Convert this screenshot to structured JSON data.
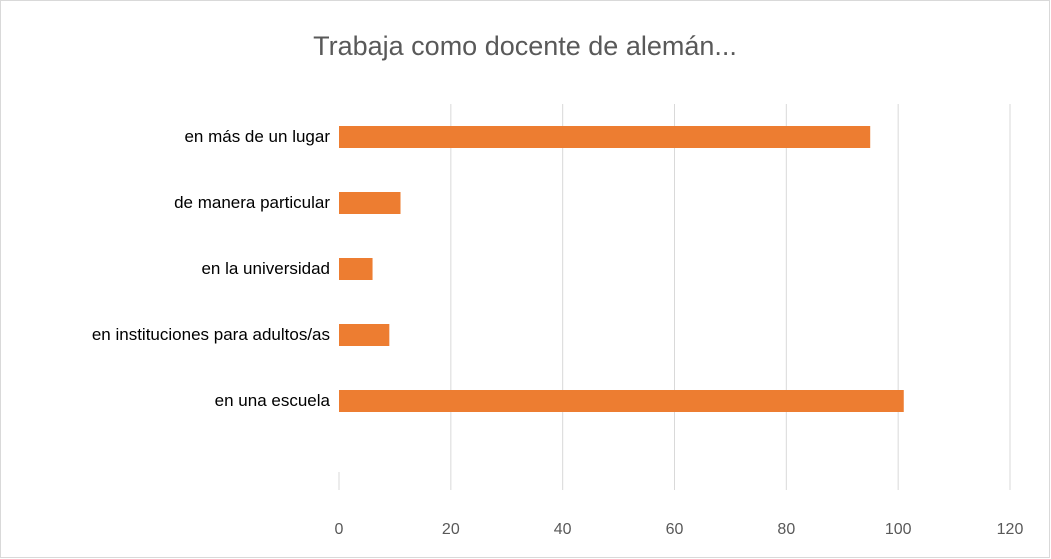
{
  "chart_data": {
    "type": "bar",
    "orientation": "horizontal",
    "title": "Trabaja como docente de alemán...",
    "categories": [
      "en una escuela",
      "en instituciones para adultos/as",
      "en la universidad",
      "de manera particular",
      "en más de un lugar"
    ],
    "values": [
      101,
      9,
      6,
      11,
      95
    ],
    "color": "#ed7d31",
    "xlim": [
      0,
      120
    ],
    "xticks": [
      0,
      20,
      40,
      60,
      80,
      100,
      120
    ],
    "grid": true
  }
}
